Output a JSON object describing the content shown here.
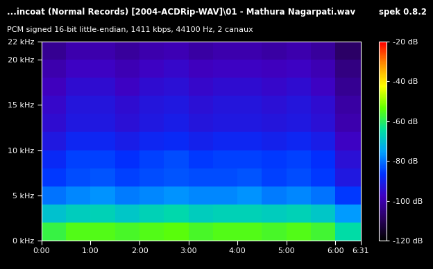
{
  "chart_data": {
    "type": "heatmap",
    "title": "...incoat (Normal Records) [2004-ACDRip-WAV]\\01 - Mathura Nagarpati.wav",
    "subtitle": "PCM signed 16-bit little-endian, 1411 kbps, 44100 Hz, 2 canaux",
    "annotations": [
      "spek 0.8.2"
    ],
    "xlim": [
      0,
      391
    ],
    "xticks": [
      {
        "value": 0,
        "label": "0:00"
      },
      {
        "value": 60,
        "label": "1:00"
      },
      {
        "value": 120,
        "label": "2:00"
      },
      {
        "value": 180,
        "label": "3:00"
      },
      {
        "value": 240,
        "label": "4:00"
      },
      {
        "value": 300,
        "label": "5:00"
      },
      {
        "value": 360,
        "label": "6:00"
      },
      {
        "value": 391,
        "label": "6:31"
      }
    ],
    "ylim": [
      0,
      22
    ],
    "yticks": [
      {
        "value": 0,
        "label": "0 kHz"
      },
      {
        "value": 5,
        "label": "5 kHz"
      },
      {
        "value": 10,
        "label": "10 kHz"
      },
      {
        "value": 15,
        "label": "15 kHz"
      },
      {
        "value": 20,
        "label": "20 kHz"
      },
      {
        "value": 22,
        "label": "22 kHz"
      }
    ],
    "x_edges": [
      0,
      30,
      60,
      90,
      120,
      150,
      180,
      210,
      240,
      270,
      300,
      330,
      360,
      391
    ],
    "y_edges": [
      0,
      2,
      4,
      6,
      8,
      10,
      12,
      14,
      16,
      18,
      20,
      22
    ],
    "cells": [
      [
        -58,
        -55,
        -55,
        -56,
        -55,
        -54,
        -56,
        -55,
        -55,
        -56,
        -55,
        -57,
        -65
      ],
      [
        -70,
        -68,
        -67,
        -69,
        -67,
        -66,
        -68,
        -67,
        -67,
        -68,
        -67,
        -69,
        -76
      ],
      [
        -80,
        -78,
        -77,
        -79,
        -78,
        -77,
        -78,
        -78,
        -77,
        -79,
        -78,
        -80,
        -86
      ],
      [
        -86,
        -84,
        -83,
        -85,
        -84,
        -83,
        -84,
        -84,
        -83,
        -85,
        -84,
        -86,
        -92
      ],
      [
        -88,
        -85,
        -85,
        -87,
        -85,
        -84,
        -86,
        -85,
        -85,
        -86,
        -85,
        -87,
        -94
      ],
      [
        -92,
        -89,
        -89,
        -91,
        -89,
        -88,
        -90,
        -89,
        -89,
        -90,
        -89,
        -91,
        -97
      ],
      [
        -95,
        -92,
        -92,
        -94,
        -92,
        -91,
        -93,
        -92,
        -92,
        -93,
        -92,
        -94,
        -100
      ],
      [
        -96,
        -93,
        -93,
        -95,
        -93,
        -92,
        -94,
        -93,
        -93,
        -94,
        -93,
        -95,
        -101
      ],
      [
        -98,
        -95,
        -95,
        -97,
        -95,
        -94,
        -96,
        -95,
        -95,
        -96,
        -95,
        -97,
        -103
      ],
      [
        -100,
        -97,
        -97,
        -99,
        -97,
        -96,
        -98,
        -97,
        -97,
        -98,
        -97,
        -99,
        -105
      ],
      [
        -103,
        -100,
        -100,
        -102,
        -100,
        -99,
        -101,
        -100,
        -100,
        -101,
        -100,
        -102,
        -108
      ]
    ],
    "color_range": [
      -120,
      -20
    ],
    "colorbar_ticks": [
      {
        "value": -20,
        "label": "-20 dB"
      },
      {
        "value": -40,
        "label": "-40 dB"
      },
      {
        "value": -60,
        "label": "-60 dB"
      },
      {
        "value": -80,
        "label": "-80 dB"
      },
      {
        "value": -100,
        "label": "-100 dB"
      },
      {
        "value": -120,
        "label": "-120 dB"
      }
    ]
  }
}
